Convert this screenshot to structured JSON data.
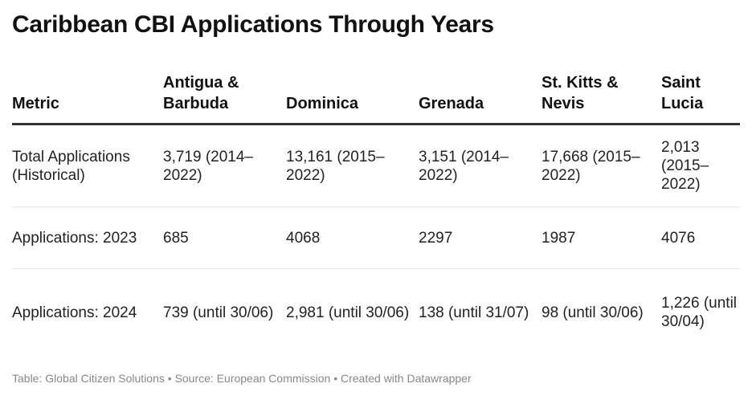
{
  "title": "Caribbean CBI Applications Through Years",
  "chart_data": {
    "type": "table",
    "title": "Caribbean CBI Applications Through Years",
    "columns": [
      "Metric",
      "Antigua & Barbuda",
      "Dominica",
      "Grenada",
      "St. Kitts & Nevis",
      "Saint Lucia"
    ],
    "rows": [
      [
        "Total Applications (Historical)",
        "3,719 (2014–2022)",
        "13,161 (2015–2022)",
        "3,151 (2014–2022)",
        "17,668 (2015–2022)",
        "2,013 (2015–2022)"
      ],
      [
        "Applications: 2023",
        "685",
        "4068",
        "2297",
        "1987",
        "4076"
      ],
      [
        "Applications: 2024",
        "739 (until 30/06)",
        "2,981 (until 30/06)",
        "138 (until 31/07)",
        "98 (until 30/06)",
        "1,226 (until 30/04)"
      ]
    ]
  },
  "footer": "Table: Global Citizen Solutions • Source: European Commission • Created with Datawrapper",
  "colors": {
    "text": "#222222",
    "rule": "#333333",
    "divider": "#e3e3e3",
    "footer": "#888888"
  }
}
